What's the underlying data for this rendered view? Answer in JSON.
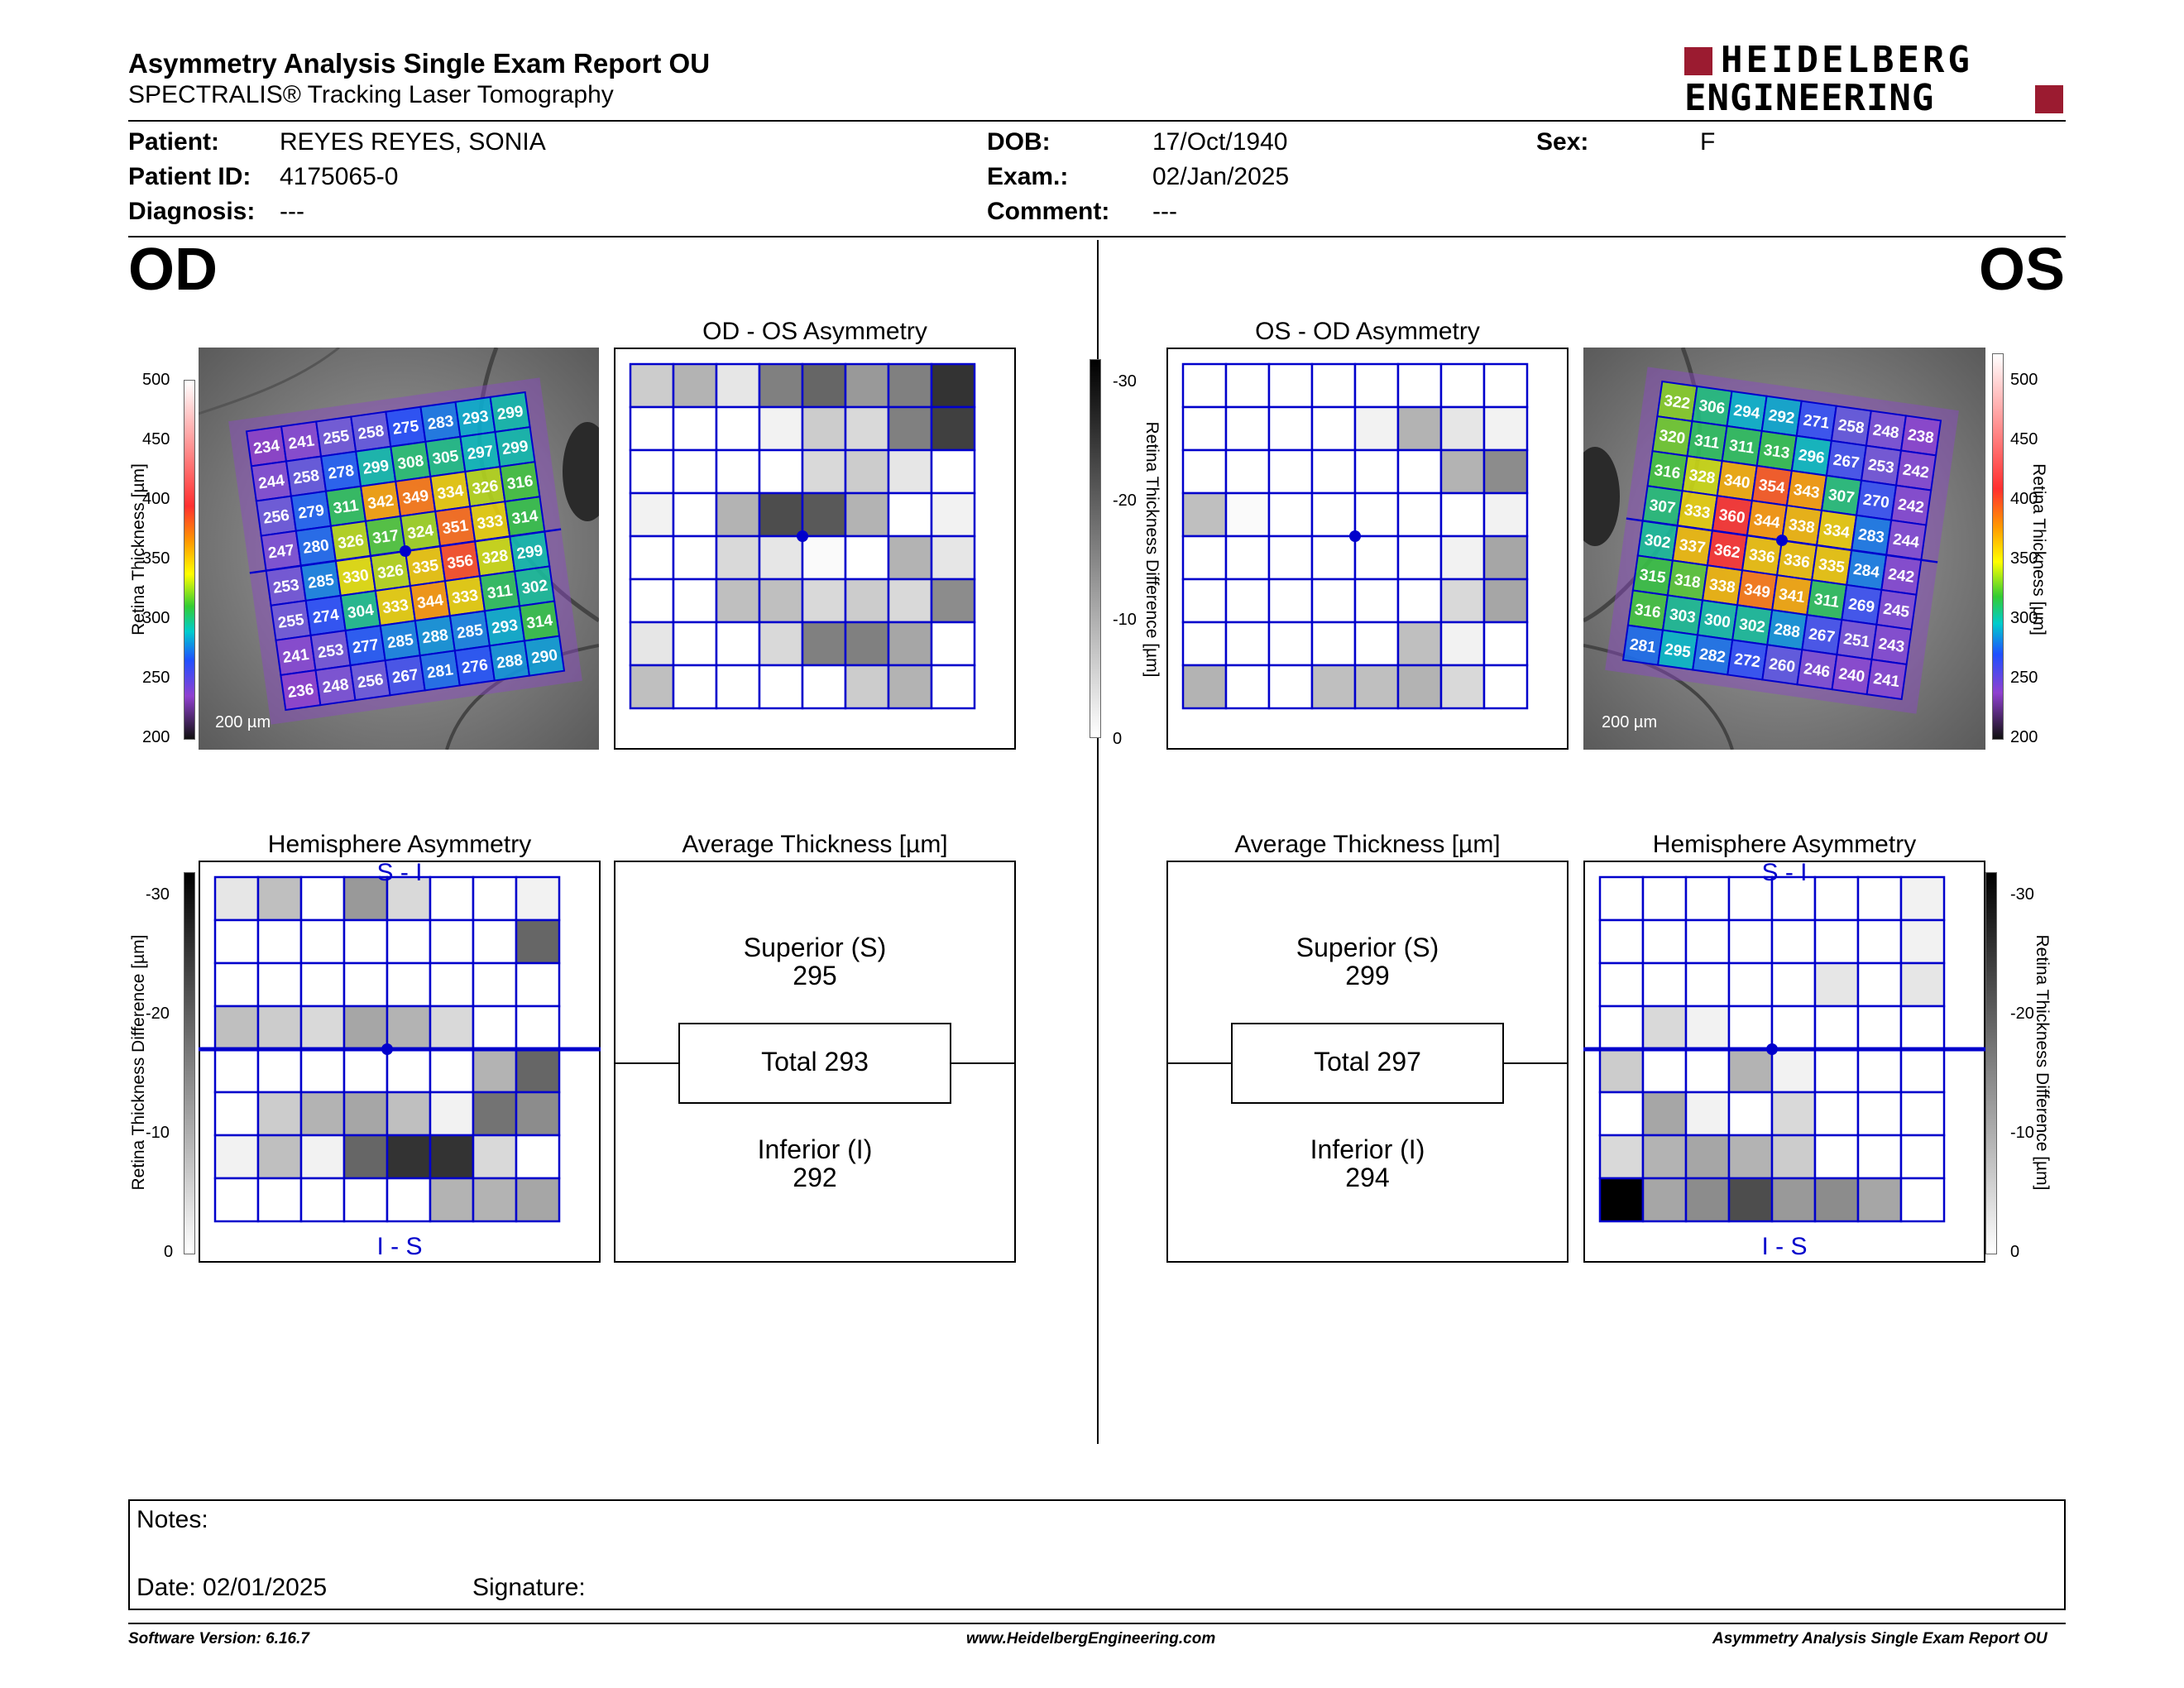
{
  "header": {
    "title": "Asymmetry Analysis Single Exam Report OU",
    "subtitle": "SPECTRALIS® Tracking Laser Tomography",
    "logo_line1": "HEIDELBERG",
    "logo_line2": "ENGINEERING"
  },
  "patient": {
    "patient_label": "Patient:",
    "patient_value": "REYES REYES, SONIA",
    "id_label": "Patient ID:",
    "id_value": "4175065-0",
    "diag_label": "Diagnosis:",
    "diag_value": "---",
    "dob_label": "DOB:",
    "dob_value": "17/Oct/1940",
    "exam_label": "Exam.:",
    "exam_value": "02/Jan/2025",
    "comment_label": "Comment:",
    "comment_value": "---",
    "sex_label": "Sex:",
    "sex_value": "F"
  },
  "eyes": {
    "od": "OD",
    "os": "OS"
  },
  "thickness_scale": {
    "label": "Retina Thickness [µm]",
    "ticks": [
      "500",
      "450",
      "400",
      "350",
      "300",
      "250",
      "200"
    ]
  },
  "difference_scale": {
    "label": "Retina Thickness Difference [µm]",
    "ticks": [
      "-30",
      "-20",
      "-10",
      "0"
    ]
  },
  "scale_bar": "200 µm",
  "od": {
    "map_values": [
      [
        234,
        241,
        255,
        258,
        275,
        283,
        293,
        299
      ],
      [
        244,
        258,
        278,
        299,
        308,
        305,
        297,
        299
      ],
      [
        256,
        279,
        311,
        342,
        349,
        334,
        326,
        316
      ],
      [
        247,
        280,
        326,
        317,
        324,
        351,
        333,
        314
      ],
      [
        253,
        285,
        330,
        326,
        335,
        356,
        328,
        299
      ],
      [
        255,
        274,
        304,
        333,
        344,
        333,
        311,
        302
      ],
      [
        241,
        253,
        277,
        285,
        288,
        285,
        293,
        314
      ],
      [
        236,
        248,
        256,
        267,
        281,
        276,
        288,
        290
      ]
    ],
    "asym_title": "OD - OS Asymmetry",
    "asym_grid": [
      [
        0.2,
        0.3,
        0.1,
        0.5,
        0.6,
        0.4,
        0.5,
        0.8
      ],
      [
        0,
        0,
        0,
        0.05,
        0.2,
        0.15,
        0.5,
        0.75
      ],
      [
        0,
        0,
        0,
        0,
        0.15,
        0.2,
        0.1,
        0
      ],
      [
        0.05,
        0,
        0.3,
        0.7,
        0.65,
        0.3,
        0,
        0.05
      ],
      [
        0,
        0,
        0.15,
        0.1,
        0.02,
        0,
        0.3,
        0.1
      ],
      [
        0,
        0,
        0.25,
        0.25,
        0.15,
        0.2,
        0.15,
        0.45
      ],
      [
        0.1,
        0,
        0,
        0.15,
        0.5,
        0.5,
        0.35,
        0
      ],
      [
        0.25,
        0,
        0,
        0,
        0,
        0.2,
        0.3,
        0
      ]
    ],
    "hemi_title": "Hemisphere Asymmetry",
    "hemi_top": "S - I",
    "hemi_bottom": "I - S",
    "hemi_grid": [
      [
        0.1,
        0.25,
        0,
        0.4,
        0.15,
        0,
        0,
        0.05
      ],
      [
        0,
        0,
        0,
        0,
        0,
        0,
        0,
        0.6
      ],
      [
        0,
        0,
        0,
        0,
        0,
        0,
        0,
        0
      ],
      [
        0.25,
        0.2,
        0.15,
        0.35,
        0.3,
        0.15,
        0,
        0
      ],
      [
        0,
        0,
        0,
        0,
        0,
        0,
        0.3,
        0.6
      ],
      [
        0,
        0.2,
        0.3,
        0.35,
        0.25,
        0.05,
        0.55,
        0.45
      ],
      [
        0.05,
        0.25,
        0.05,
        0.6,
        0.8,
        0.8,
        0.15,
        0
      ],
      [
        0,
        0,
        0,
        0,
        0,
        0.3,
        0.3,
        0.35
      ]
    ],
    "avg_title": "Average Thickness [µm]",
    "superior_label": "Superior (S)",
    "superior_value": "295",
    "total_label": "Total 293",
    "inferior_label": "Inferior (I)",
    "inferior_value": "292"
  },
  "os": {
    "map_values": [
      [
        322,
        306,
        294,
        292,
        271,
        258,
        248,
        238
      ],
      [
        320,
        311,
        311,
        313,
        296,
        267,
        253,
        242
      ],
      [
        316,
        328,
        340,
        354,
        343,
        307,
        270,
        242
      ],
      [
        307,
        333,
        360,
        344,
        338,
        334,
        283,
        244
      ],
      [
        302,
        337,
        362,
        336,
        336,
        335,
        284,
        242
      ],
      [
        315,
        318,
        338,
        349,
        341,
        311,
        269,
        245
      ],
      [
        316,
        303,
        300,
        302,
        288,
        267,
        251,
        243
      ],
      [
        281,
        295,
        282,
        272,
        260,
        246,
        240,
        241
      ]
    ],
    "asym_title": "OS - OD Asymmetry",
    "asym_grid": [
      [
        0,
        0,
        0,
        0,
        0,
        0,
        0,
        0
      ],
      [
        0,
        0,
        0,
        0,
        0.05,
        0.3,
        0.1,
        0.05
      ],
      [
        0,
        0,
        0,
        0,
        0,
        0,
        0.3,
        0.45
      ],
      [
        0.25,
        0.02,
        0,
        0,
        0,
        0,
        0,
        0.05
      ],
      [
        0,
        0,
        0,
        0,
        0,
        0,
        0.05,
        0.35
      ],
      [
        0,
        0,
        0,
        0,
        0,
        0,
        0.15,
        0.35
      ],
      [
        0,
        0,
        0,
        0,
        0,
        0.25,
        0.05,
        0
      ],
      [
        0.3,
        0,
        0,
        0.25,
        0.25,
        0.3,
        0.15,
        0
      ]
    ],
    "hemi_title": "Hemisphere Asymmetry",
    "hemi_top": "S - I",
    "hemi_bottom": "I - S",
    "hemi_grid": [
      [
        0,
        0,
        0,
        0,
        0,
        0,
        0,
        0.05
      ],
      [
        0,
        0,
        0,
        0,
        0,
        0,
        0,
        0.05
      ],
      [
        0,
        0,
        0,
        0,
        0,
        0.1,
        0,
        0.1
      ],
      [
        0,
        0.15,
        0.05,
        0,
        0,
        0,
        0,
        0
      ],
      [
        0.2,
        0,
        0,
        0.3,
        0.05,
        0,
        0,
        0
      ],
      [
        0,
        0.35,
        0.05,
        0,
        0.15,
        0,
        0,
        0
      ],
      [
        0.15,
        0.3,
        0.35,
        0.3,
        0.2,
        0,
        0,
        0
      ],
      [
        1,
        0.35,
        0.45,
        0.7,
        0.4,
        0.45,
        0.35,
        0
      ]
    ],
    "avg_title": "Average Thickness [µm]",
    "superior_label": "Superior (S)",
    "superior_value": "299",
    "total_label": "Total 297",
    "inferior_label": "Inferior (I)",
    "inferior_value": "294"
  },
  "notes": {
    "label": "Notes:",
    "date_label": "Date: 02/01/2025",
    "signature_label": "Signature:"
  },
  "footer": {
    "software": "Software Version: 6.16.7",
    "website": "www.HeidelbergEngineering.com",
    "report": "Asymmetry Analysis Single Exam Report OU"
  }
}
